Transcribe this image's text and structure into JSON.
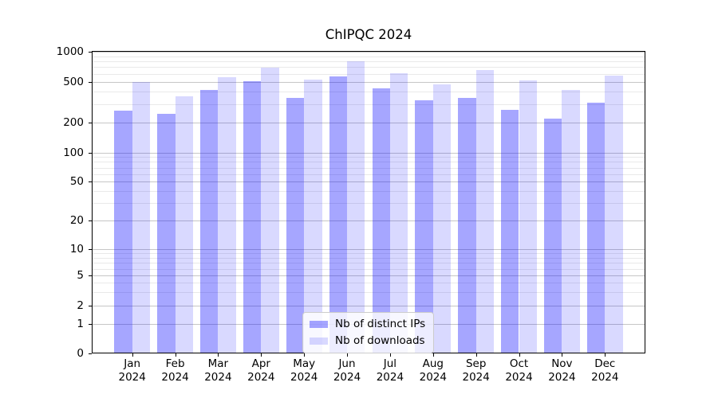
{
  "chart_data": {
    "type": "bar",
    "title": "ChIPQC 2024",
    "year": "2024",
    "categories": [
      "Jan",
      "Feb",
      "Mar",
      "Apr",
      "May",
      "Jun",
      "Jul",
      "Aug",
      "Sep",
      "Oct",
      "Nov",
      "Dec"
    ],
    "series": [
      {
        "name": "Nb of distinct IPs",
        "color": "#0000FF59",
        "values": [
          260,
          245,
          420,
          510,
          350,
          570,
          430,
          330,
          350,
          265,
          220,
          315
        ]
      },
      {
        "name": "Nb of downloads",
        "color": "#0000FF26",
        "values": [
          500,
          360,
          555,
          695,
          525,
          800,
          610,
          470,
          650,
          520,
          415,
          580
        ]
      }
    ],
    "yticks": [
      0,
      1,
      2,
      5,
      10,
      20,
      50,
      100,
      200,
      500,
      1000
    ],
    "ylim": [
      0,
      1000
    ],
    "yscale": "symlog",
    "xlabel": "",
    "ylabel": "",
    "grid": "major+minor horizontal",
    "legend_position": "lower center"
  }
}
